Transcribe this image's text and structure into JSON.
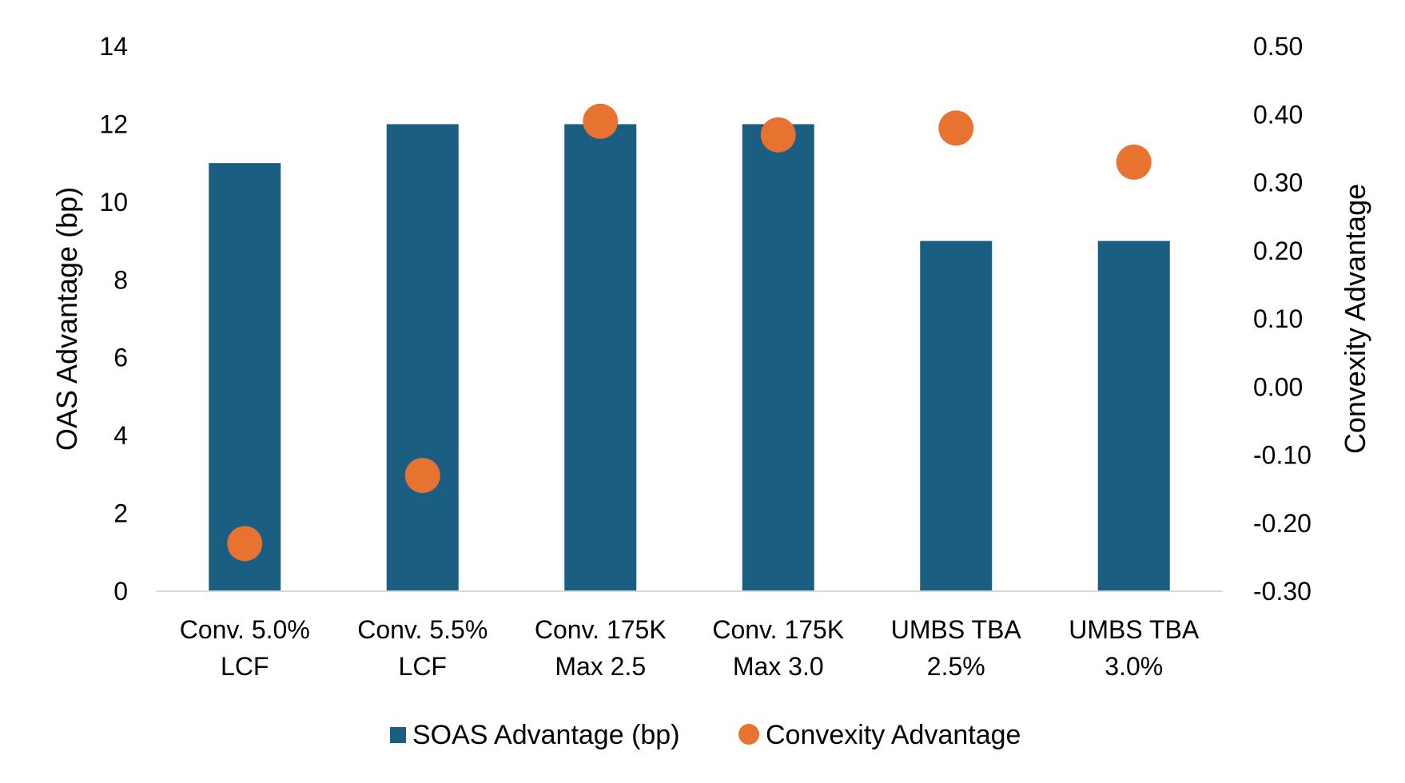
{
  "chart_data": {
    "type": "bar",
    "title": "",
    "categories": [
      [
        "Conv. 5.0%",
        "LCF"
      ],
      [
        "Conv. 5.5%",
        "LCF"
      ],
      [
        "Conv. 175K",
        "Max 2.5"
      ],
      [
        "Conv. 175K",
        "Max 3.0"
      ],
      [
        "UMBS TBA",
        "2.5%"
      ],
      [
        "UMBS TBA",
        "3.0%"
      ]
    ],
    "series": [
      {
        "name": "SOAS Advantage (bp)",
        "type": "bar",
        "axis": "left",
        "color": "#1a5e82",
        "values": [
          11,
          12,
          12,
          12,
          9,
          9
        ]
      },
      {
        "name": "Convexity Advantage",
        "type": "scatter",
        "axis": "right",
        "color": "#e87330",
        "values": [
          -0.23,
          -0.13,
          0.39,
          0.37,
          0.38,
          0.33
        ]
      }
    ],
    "ylabel": "OAS Advantage (bp)",
    "ylim": [
      0,
      14
    ],
    "yticks": [
      "0",
      "2",
      "4",
      "6",
      "8",
      "10",
      "12",
      "14"
    ],
    "y2label": "Convexity Advantage",
    "y2lim": [
      -0.3,
      0.5
    ],
    "y2ticks": [
      "-0.30",
      "-0.20",
      "-0.10",
      "0.00",
      "0.10",
      "0.20",
      "0.30",
      "0.40",
      "0.50"
    ],
    "grid": false,
    "legend": "bottom"
  }
}
